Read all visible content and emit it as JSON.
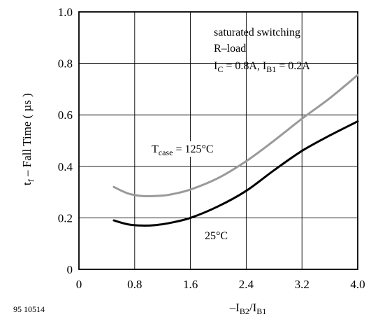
{
  "figure_id": "95 10514",
  "chart_data": {
    "type": "line",
    "xlabel": {
      "pre": "–I",
      "sub1": "B2",
      "mid": "/I",
      "sub2": "B1"
    },
    "ylabel": {
      "pre": "t",
      "sub": "f",
      "post": " – Fall Time ( µs )"
    },
    "xlim": [
      0,
      4.0
    ],
    "ylim": [
      0,
      1.0
    ],
    "x_ticks": [
      "0",
      "0.8",
      "1.6",
      "2.4",
      "3.2",
      "4.0"
    ],
    "y_ticks": [
      "0",
      "0.2",
      "0.4",
      "0.6",
      "0.8",
      "1.0"
    ],
    "x_tick_values": [
      0,
      0.8,
      1.6,
      2.4,
      3.2,
      4.0
    ],
    "y_tick_values": [
      0,
      0.2,
      0.4,
      0.6,
      0.8,
      1.0
    ],
    "grid": true,
    "conditions": {
      "line1": "saturated switching",
      "line2": "R–load",
      "line3": {
        "ic_pre": "I",
        "ic_sub": "C",
        "ic_val": " = 0.8A, ",
        "ib_pre": "I",
        "ib_sub": "B1",
        "ib_val": " = 0.2A"
      }
    },
    "series": [
      {
        "label": {
          "pre": "T",
          "sub": "case",
          "post": " = 125°C"
        },
        "color": "#9a9a9a",
        "x": [
          0.5,
          0.7,
          0.9,
          1.1,
          1.3,
          1.6,
          2.0,
          2.4,
          2.8,
          3.2,
          3.6,
          4.0
        ],
        "y": [
          0.32,
          0.295,
          0.285,
          0.285,
          0.29,
          0.31,
          0.355,
          0.42,
          0.5,
          0.585,
          0.665,
          0.755
        ]
      },
      {
        "label": {
          "pre": "25°C",
          "sub": "",
          "post": ""
        },
        "color": "#000000",
        "x": [
          0.5,
          0.7,
          0.9,
          1.1,
          1.3,
          1.6,
          2.0,
          2.4,
          2.8,
          3.2,
          3.6,
          4.0
        ],
        "y": [
          0.19,
          0.175,
          0.17,
          0.172,
          0.18,
          0.2,
          0.245,
          0.305,
          0.385,
          0.46,
          0.52,
          0.575
        ]
      }
    ]
  }
}
